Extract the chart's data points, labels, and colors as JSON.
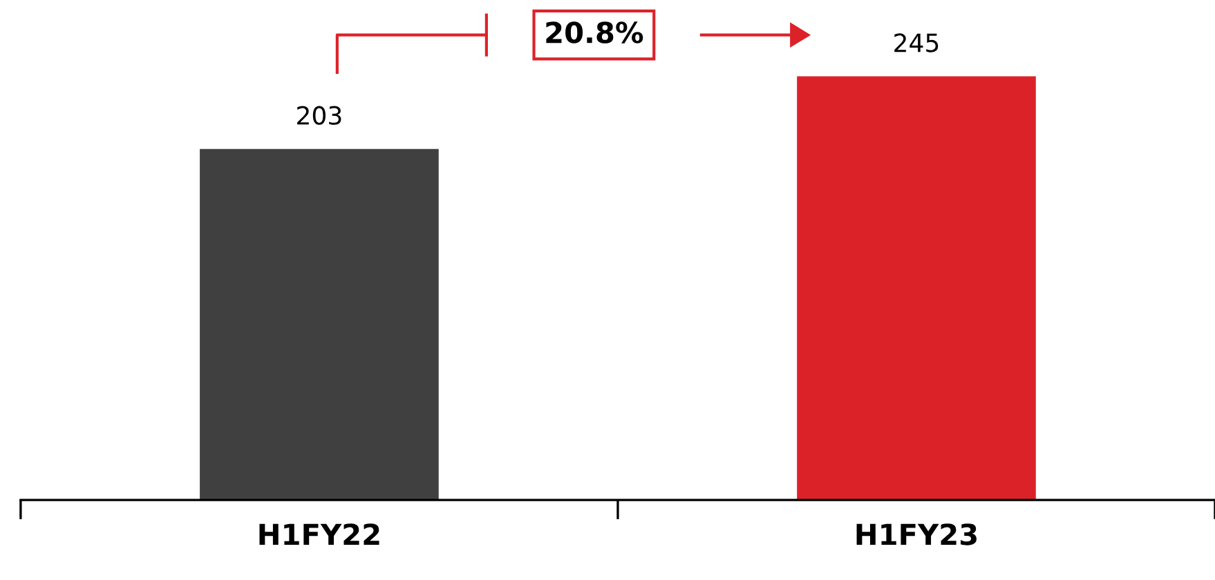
{
  "chart_data": {
    "type": "bar",
    "categories": [
      "H1FY22",
      "H1FY23"
    ],
    "values": [
      203,
      245
    ],
    "colors": [
      "#404040",
      "#dc2229"
    ],
    "data_labels": true,
    "annotations": [
      "20.8%"
    ],
    "grid": false,
    "legend": false
  }
}
